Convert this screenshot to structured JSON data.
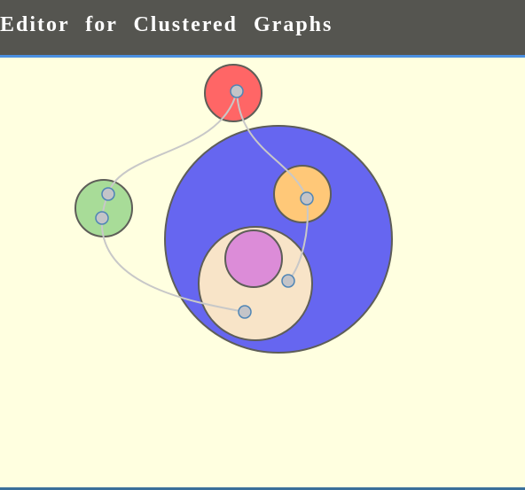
{
  "header": {
    "title": "Editor for Clustered Graphs"
  },
  "colors": {
    "header_bg": "#555550",
    "header_border": "#4a90e2",
    "canvas_bg": "#ffffe0",
    "cluster_red": "#ff6666",
    "cluster_blue": "#6666f0",
    "cluster_green": "#a8dc98",
    "cluster_orange": "#ffc878",
    "cluster_beige": "#f8e4c8",
    "cluster_pink": "#dc8cd8",
    "edge": "#c8c8c8",
    "node_fill": "#c4c4c8",
    "node_stroke": "#4f85b5"
  }
}
